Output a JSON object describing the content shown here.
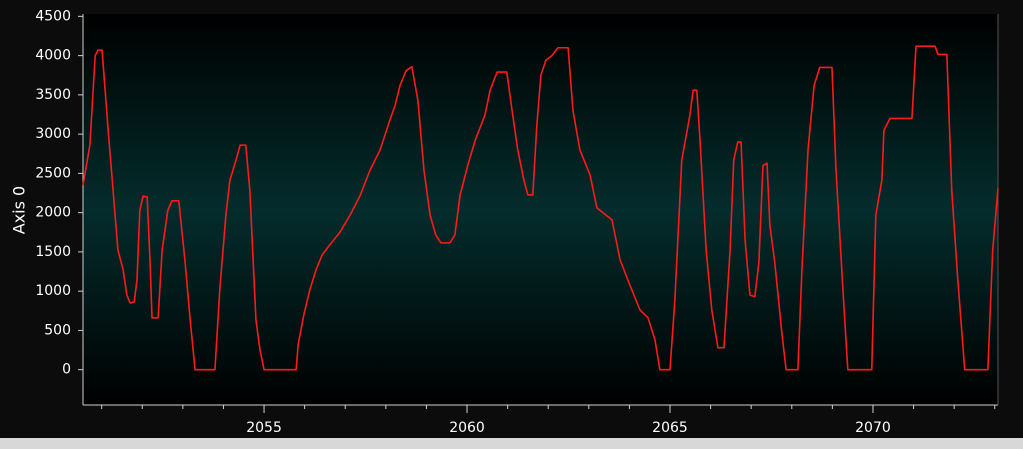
{
  "chart_data": {
    "type": "line",
    "ylabel": "Axis 0",
    "xlim": [
      2050.54,
      2073.08
    ],
    "ylim": [
      -450,
      4530
    ],
    "xticks": [
      2055,
      2060,
      2065,
      2070
    ],
    "xminorticks": [
      2051,
      2052,
      2053,
      2054,
      2055,
      2056,
      2057,
      2058,
      2059,
      2060,
      2061,
      2062,
      2063,
      2064,
      2065,
      2066,
      2067,
      2068,
      2069,
      2070,
      2071,
      2072,
      2073
    ],
    "yticks": [
      0,
      500,
      1000,
      1500,
      2000,
      2500,
      3000,
      3500,
      4000,
      4500
    ],
    "series": [
      {
        "color": "#ff1a1a",
        "x": [
          2050.54,
          2050.71,
          2050.84,
          2050.91,
          2051.01,
          2051.16,
          2051.28,
          2051.4,
          2051.53,
          2051.62,
          2051.7,
          2051.8,
          2051.87,
          2051.94,
          2052.02,
          2052.12,
          2052.19,
          2052.24,
          2052.39,
          2052.49,
          2052.63,
          2052.73,
          2052.9,
          2053.05,
          2053.18,
          2053.3,
          2053.79,
          2053.91,
          2054.06,
          2054.16,
          2054.31,
          2054.41,
          2054.55,
          2054.65,
          2054.8,
          2054.9,
          2055.0,
          2055.79,
          2055.84,
          2055.98,
          2056.13,
          2056.28,
          2056.43,
          2056.62,
          2056.87,
          2057.12,
          2057.36,
          2057.61,
          2057.86,
          2058.1,
          2058.23,
          2058.35,
          2058.5,
          2058.64,
          2058.79,
          2058.94,
          2059.09,
          2059.23,
          2059.36,
          2059.58,
          2059.7,
          2059.83,
          2060.02,
          2060.2,
          2060.44,
          2060.57,
          2060.74,
          2060.98,
          2061.11,
          2061.25,
          2061.4,
          2061.5,
          2061.62,
          2061.72,
          2061.82,
          2061.94,
          2062.09,
          2062.24,
          2062.49,
          2062.61,
          2062.78,
          2063.03,
          2063.2,
          2063.42,
          2063.57,
          2063.77,
          2064.01,
          2064.26,
          2064.46,
          2064.63,
          2064.75,
          2065.0,
          2065.12,
          2065.29,
          2065.49,
          2065.57,
          2065.66,
          2065.74,
          2065.89,
          2066.03,
          2066.18,
          2066.33,
          2066.48,
          2066.57,
          2066.67,
          2066.75,
          2066.85,
          2066.97,
          2067.09,
          2067.19,
          2067.29,
          2067.39,
          2067.46,
          2067.58,
          2067.76,
          2067.86,
          2068.15,
          2068.25,
          2068.4,
          2068.55,
          2068.69,
          2068.99,
          2069.09,
          2069.26,
          2069.38,
          2069.97,
          2070.07,
          2070.22,
          2070.27,
          2070.42,
          2070.96,
          2071.06,
          2071.53,
          2071.6,
          2071.82,
          2071.94,
          2072.09,
          2072.26,
          2072.83,
          2072.95,
          2073.08
        ],
        "values": [
          2350,
          2860,
          4000,
          4070,
          4070,
          3050,
          2290,
          1525,
          1270,
          950,
          850,
          860,
          1140,
          2030,
          2210,
          2200,
          1400,
          660,
          660,
          1525,
          2030,
          2150,
          2150,
          1400,
          635,
          0,
          0,
          1020,
          1970,
          2415,
          2670,
          2860,
          2860,
          2290,
          635,
          254,
          0,
          0,
          318,
          700,
          1020,
          1270,
          1460,
          1590,
          1750,
          1970,
          2210,
          2540,
          2800,
          3180,
          3370,
          3620,
          3810,
          3860,
          3430,
          2540,
          1970,
          1715,
          1615,
          1615,
          1715,
          2225,
          2605,
          2920,
          3240,
          3560,
          3790,
          3790,
          3300,
          2800,
          2415,
          2225,
          2225,
          3115,
          3750,
          3940,
          4000,
          4100,
          4100,
          3300,
          2800,
          2480,
          2060,
          1970,
          1910,
          1400,
          1080,
          760,
          660,
          380,
          0,
          0,
          890,
          2670,
          3240,
          3560,
          3560,
          2920,
          1525,
          760,
          280,
          280,
          1525,
          2670,
          2900,
          2900,
          1650,
          950,
          930,
          1370,
          2600,
          2630,
          1840,
          1370,
          445,
          0,
          0,
          1270,
          2800,
          3620,
          3850,
          3850,
          2540,
          1020,
          0,
          0,
          1970,
          2415,
          3050,
          3200,
          3200,
          4120,
          4120,
          4015,
          4015,
          2290,
          1145,
          0,
          0,
          1525,
          2310
        ]
      }
    ]
  }
}
